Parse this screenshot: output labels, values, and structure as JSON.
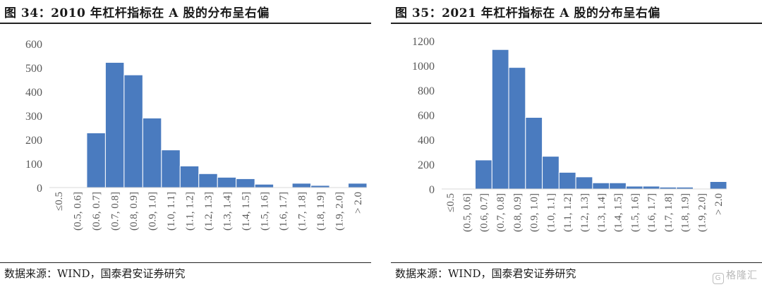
{
  "chart_data": [
    {
      "type": "bar",
      "title": "图 34：2010 年杠杆指标在 A 股的分布呈右偏",
      "source": "数据来源：WIND，国泰君安证券研究",
      "categories": [
        "≤0.5",
        "(0.5, 0.6]",
        "(0.6, 0.7]",
        "(0.7, 0.8]",
        "(0.8, 0.9]",
        "(0.9, 1.0]",
        "(1.0, 1.1]",
        "(1.1, 1.2]",
        "(1.2, 1.3]",
        "(1.3, 1.4]",
        "(1.4, 1.5]",
        "(1.5, 1.6]",
        "(1.6, 1.7]",
        "(1.7, 1.8]",
        "(1.8, 1.9]",
        "(1.9, 2.0]",
        "> 2.0"
      ],
      "values": [
        0,
        0,
        228,
        522,
        470,
        290,
        157,
        90,
        58,
        43,
        37,
        14,
        0,
        18,
        9,
        0,
        18
      ],
      "ylim": [
        0,
        600
      ],
      "yticks": [
        0,
        100,
        200,
        300,
        400,
        500,
        600
      ],
      "bar_color": "#4a7bbf",
      "grid": false
    },
    {
      "type": "bar",
      "title": "图 35：2021 年杠杆指标在 A 股的分布呈右偏",
      "source": "数据来源：WIND，国泰君安证券研究",
      "categories": [
        "≤0.5",
        "(0.5, 0.6]",
        "(0.6, 0.7]",
        "(0.7, 0.8]",
        "(0.8, 0.9]",
        "(0.9, 1.0]",
        "(1.0, 1.1]",
        "(1.1, 1.2]",
        "(1.2, 1.3]",
        "(1.3, 1.4]",
        "(1.4, 1.5]",
        "(1.5, 1.6]",
        "(1.6, 1.7]",
        "(1.7, 1.8]",
        "(1.8, 1.9]",
        "(1.9, 2.0]",
        "> 2.0"
      ],
      "values": [
        0,
        0,
        235,
        1130,
        985,
        580,
        265,
        135,
        98,
        50,
        50,
        23,
        23,
        15,
        15,
        0,
        60
      ],
      "ylim": [
        0,
        1200
      ],
      "yticks": [
        0,
        200,
        400,
        600,
        800,
        1000,
        1200
      ],
      "bar_color": "#4a7bbf",
      "grid": false
    }
  ],
  "watermark": {
    "icon": "gelonghui-logo-icon",
    "icon_glyph": "G",
    "text": "格隆汇"
  }
}
